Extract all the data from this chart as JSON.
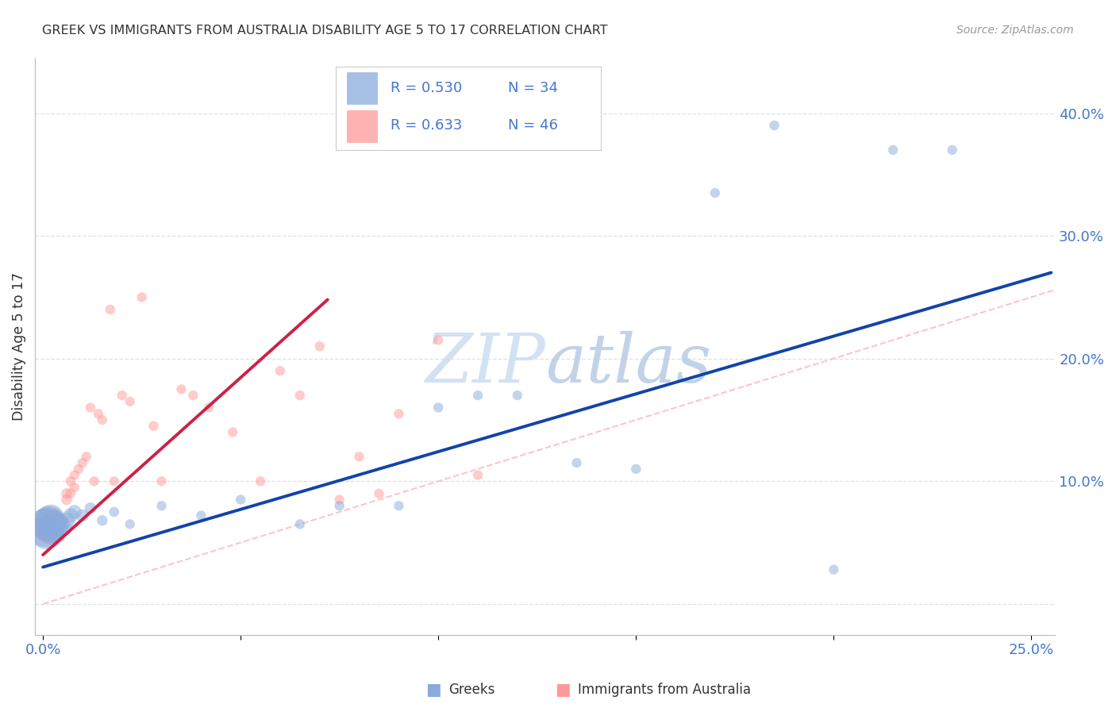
{
  "title": "GREEK VS IMMIGRANTS FROM AUSTRALIA DISABILITY AGE 5 TO 17 CORRELATION CHART",
  "source": "Source: ZipAtlas.com",
  "ylabel": "Disability Age 5 to 17",
  "xlim": [
    -0.002,
    0.256
  ],
  "ylim": [
    -0.025,
    0.445
  ],
  "blue_color": "#88aadd",
  "pink_color": "#ff9999",
  "blue_line_color": "#1144aa",
  "pink_line_color": "#cc2244",
  "diag_line_color": "#ffbbcc",
  "grid_color": "#dddddd",
  "label_color": "#4477cc",
  "text_color": "#333333",
  "watermark_color": "#ccddf0",
  "background": "#ffffff",
  "r_blue": 0.53,
  "n_blue": 34,
  "r_pink": 0.633,
  "n_pink": 46,
  "greek_x": [
    0.0005,
    0.001,
    0.001,
    0.0015,
    0.002,
    0.002,
    0.003,
    0.003,
    0.004,
    0.005,
    0.006,
    0.007,
    0.008,
    0.01,
    0.012,
    0.015,
    0.018,
    0.022,
    0.03,
    0.04,
    0.05,
    0.065,
    0.075,
    0.09,
    0.1,
    0.11,
    0.12,
    0.135,
    0.15,
    0.17,
    0.185,
    0.2,
    0.215,
    0.23
  ],
  "greek_y": [
    0.062,
    0.058,
    0.065,
    0.068,
    0.06,
    0.07,
    0.063,
    0.067,
    0.065,
    0.062,
    0.068,
    0.072,
    0.075,
    0.072,
    0.078,
    0.068,
    0.075,
    0.065,
    0.08,
    0.072,
    0.085,
    0.065,
    0.08,
    0.08,
    0.16,
    0.17,
    0.17,
    0.115,
    0.11,
    0.335,
    0.39,
    0.028,
    0.37,
    0.37
  ],
  "greek_sizes_raw": [
    1200,
    900,
    900,
    700,
    600,
    600,
    450,
    450,
    350,
    280,
    220,
    180,
    160,
    130,
    110,
    95,
    85,
    80,
    80,
    80,
    80,
    80,
    80,
    80,
    80,
    80,
    80,
    80,
    80,
    80,
    80,
    80,
    80,
    80
  ],
  "imm_x": [
    0.0005,
    0.001,
    0.001,
    0.0015,
    0.002,
    0.002,
    0.003,
    0.003,
    0.004,
    0.004,
    0.005,
    0.005,
    0.006,
    0.006,
    0.007,
    0.007,
    0.008,
    0.008,
    0.009,
    0.01,
    0.011,
    0.012,
    0.013,
    0.014,
    0.015,
    0.017,
    0.018,
    0.02,
    0.022,
    0.025,
    0.028,
    0.03,
    0.035,
    0.038,
    0.042,
    0.048,
    0.055,
    0.06,
    0.065,
    0.07,
    0.075,
    0.08,
    0.085,
    0.09,
    0.1,
    0.11
  ],
  "imm_y": [
    0.062,
    0.058,
    0.06,
    0.065,
    0.06,
    0.068,
    0.072,
    0.055,
    0.065,
    0.055,
    0.068,
    0.06,
    0.09,
    0.085,
    0.1,
    0.09,
    0.095,
    0.105,
    0.11,
    0.115,
    0.12,
    0.16,
    0.1,
    0.155,
    0.15,
    0.24,
    0.1,
    0.17,
    0.165,
    0.25,
    0.145,
    0.1,
    0.175,
    0.17,
    0.16,
    0.14,
    0.1,
    0.19,
    0.17,
    0.21,
    0.085,
    0.12,
    0.09,
    0.155,
    0.215,
    0.105
  ],
  "imm_sizes_raw": [
    500,
    380,
    380,
    280,
    220,
    220,
    160,
    160,
    130,
    130,
    110,
    110,
    95,
    95,
    85,
    85,
    80,
    80,
    80,
    80,
    80,
    80,
    80,
    80,
    80,
    80,
    80,
    80,
    80,
    80,
    80,
    80,
    80,
    80,
    80,
    80,
    80,
    80,
    80,
    80,
    80,
    80,
    80,
    80,
    80,
    80
  ],
  "blue_line_x": [
    0.0,
    0.255
  ],
  "blue_line_y": [
    0.03,
    0.27
  ],
  "pink_line_x": [
    0.0,
    0.072
  ],
  "pink_line_y": [
    0.04,
    0.248
  ]
}
